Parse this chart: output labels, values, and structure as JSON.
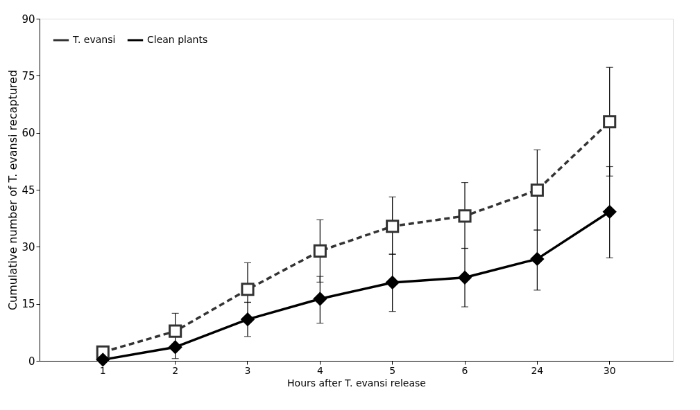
{
  "chart_data": {
    "type": "line",
    "xlabel": "Hours after T. evansi release",
    "ylabel": "Cumulative number of T. evansi recaptured",
    "categories": [
      "1",
      "2",
      "3",
      "4",
      "5",
      "6",
      "24",
      "30"
    ],
    "ylim": [
      0,
      90
    ],
    "yticks": [
      0,
      15,
      30,
      45,
      60,
      75,
      90
    ],
    "grid": false,
    "legend": "top left",
    "series": [
      {
        "name": "T. evansi",
        "color": "#333333",
        "marker": "square",
        "line_style": "dashed",
        "values": [
          2.3,
          7.8,
          18.8,
          28.9,
          35.4,
          38.1,
          44.9,
          62.9
        ],
        "errors": [
          null,
          [
            7.8,
            12.5
          ],
          [
            15.4,
            25.8
          ],
          [
            20.7,
            37.1
          ],
          [
            28.0,
            43.1
          ],
          [
            29.6,
            46.9
          ],
          [
            34.4,
            55.5
          ],
          [
            48.6,
            77.2
          ]
        ]
      },
      {
        "name": "Clean plants",
        "color": "#000000",
        "marker": "diamond",
        "line_style": "solid",
        "values": [
          0.3,
          3.6,
          10.9,
          16.3,
          20.6,
          21.9,
          26.8,
          39.2
        ],
        "errors": [
          null,
          [
            0.6,
            6.6
          ],
          [
            6.4,
            15.4
          ],
          [
            9.9,
            22.2
          ],
          [
            13.0,
            28.1
          ],
          [
            14.2,
            29.6
          ],
          [
            18.6,
            34.4
          ],
          [
            27.1,
            51.1
          ]
        ]
      }
    ]
  }
}
